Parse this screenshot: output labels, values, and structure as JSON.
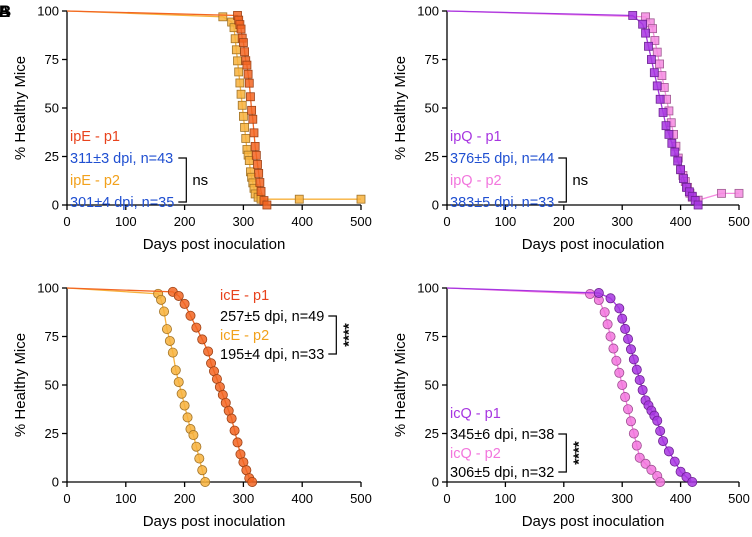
{
  "panel_letters": [
    "A",
    "B"
  ],
  "chart_data": [
    {
      "type": "line",
      "panel": "ipE",
      "xlabel": "Days post inoculation",
      "ylabel": "% Healthy Mice",
      "xlim": [
        0,
        500
      ],
      "ylim": [
        0,
        100
      ],
      "xticks": [
        0,
        100,
        200,
        300,
        400,
        500
      ],
      "yticks": [
        0,
        25,
        50,
        75,
        100
      ],
      "series": [
        {
          "name": "ipE - p1",
          "color": "#F26522",
          "marker": "square",
          "x": [
            0,
            290,
            292,
            294,
            296,
            298,
            300,
            302,
            304,
            306,
            308,
            310,
            312,
            314,
            316,
            318,
            320,
            322,
            324,
            326,
            328,
            330,
            335,
            340
          ],
          "y": [
            100,
            97.7,
            95.3,
            93,
            90.7,
            86,
            83.7,
            79,
            74.4,
            72.1,
            67.4,
            62.8,
            55.8,
            48.8,
            44.2,
            37.2,
            30.2,
            25.6,
            20.9,
            16.3,
            11.6,
            7,
            2.3,
            0
          ]
        },
        {
          "name": "ipE - p2",
          "color": "#F7B13C",
          "marker": "square",
          "x": [
            0,
            265,
            280,
            284,
            286,
            288,
            290,
            292,
            294,
            296,
            298,
            300,
            302,
            304,
            306,
            308,
            310,
            312,
            314,
            316,
            318,
            320,
            325,
            330,
            395,
            500
          ],
          "y": [
            100,
            97,
            94.3,
            91.4,
            85.7,
            80,
            74.3,
            68.6,
            62.9,
            57.1,
            51.4,
            45.7,
            40,
            34.3,
            28.6,
            25.7,
            22.9,
            17.1,
            14.3,
            11.4,
            8.6,
            5.7,
            4,
            3,
            3,
            3
          ]
        }
      ],
      "annotations": [
        {
          "text": "ipE - p1",
          "color": "#E8431D"
        },
        {
          "text": "311±3 dpi, n=43",
          "color": "#1F4FD1"
        },
        {
          "text": "ipE - p2",
          "color": "#F2A11C"
        },
        {
          "text": "301±4 dpi, n=35",
          "color": "#1F4FD1"
        }
      ],
      "significance": "ns"
    },
    {
      "type": "line",
      "panel": "ipQ",
      "xlabel": "Days post inoculation",
      "ylabel": "% Healthy Mice",
      "xlim": [
        0,
        500
      ],
      "ylim": [
        0,
        100
      ],
      "xticks": [
        0,
        100,
        200,
        300,
        400,
        500
      ],
      "yticks": [
        0,
        25,
        50,
        75,
        100
      ],
      "series": [
        {
          "name": "ipQ - p1",
          "color": "#A735E0",
          "marker": "square",
          "x": [
            0,
            318,
            335,
            340,
            345,
            350,
            355,
            360,
            365,
            370,
            375,
            380,
            385,
            390,
            395,
            400,
            405,
            410,
            415,
            420,
            425,
            430
          ],
          "y": [
            100,
            97.7,
            93.2,
            88.6,
            81.8,
            75,
            68.2,
            61.4,
            54.5,
            47.7,
            40.9,
            36.4,
            31.8,
            27.3,
            22.7,
            18.2,
            13.6,
            9.1,
            6.8,
            4.5,
            2.3,
            0
          ]
        },
        {
          "name": "ipQ - p2",
          "color": "#F58AE0",
          "marker": "square",
          "x": [
            0,
            340,
            348,
            352,
            356,
            360,
            364,
            368,
            372,
            376,
            380,
            384,
            388,
            392,
            396,
            400,
            404,
            408,
            412,
            416,
            420,
            430,
            470,
            500
          ],
          "y": [
            100,
            97,
            93.9,
            90.9,
            84.8,
            78.8,
            72.7,
            66.7,
            60.6,
            54.5,
            48.5,
            42.4,
            36.4,
            30.3,
            24.2,
            18.2,
            15.2,
            12.1,
            9.1,
            6.1,
            4,
            2.5,
            6,
            6
          ]
        }
      ],
      "annotations": [
        {
          "text": "ipQ - p1",
          "color": "#A735E0"
        },
        {
          "text": "376±5 dpi, n=44",
          "color": "#1F4FD1"
        },
        {
          "text": "ipQ - p2",
          "color": "#F276DD"
        },
        {
          "text": "383±5 dpi, n=33",
          "color": "#1F4FD1"
        }
      ],
      "significance": "ns"
    },
    {
      "type": "line",
      "panel": "icE",
      "xlabel": "Days post inoculation",
      "ylabel": "% Healthy Mice",
      "xlim": [
        0,
        500
      ],
      "ylim": [
        0,
        100
      ],
      "xticks": [
        0,
        100,
        200,
        300,
        400,
        500
      ],
      "yticks": [
        0,
        25,
        50,
        75,
        100
      ],
      "series": [
        {
          "name": "icE - p1",
          "color": "#F26522",
          "marker": "circle",
          "x": [
            0,
            180,
            190,
            200,
            210,
            220,
            230,
            240,
            245,
            250,
            255,
            260,
            265,
            270,
            275,
            280,
            285,
            290,
            295,
            300,
            305,
            310,
            315
          ],
          "y": [
            100,
            98,
            95.9,
            91.8,
            85.7,
            79.6,
            73.5,
            67.3,
            61.2,
            57.1,
            53.1,
            49,
            44.9,
            40.8,
            36.7,
            32.7,
            26.5,
            20.4,
            14.3,
            10.2,
            6.1,
            2,
            0
          ]
        },
        {
          "name": "icE - p2",
          "color": "#F7B13C",
          "marker": "circle",
          "x": [
            0,
            155,
            160,
            165,
            170,
            175,
            180,
            185,
            190,
            195,
            200,
            205,
            210,
            215,
            220,
            225,
            230,
            235
          ],
          "y": [
            100,
            97,
            93.9,
            87.9,
            78.8,
            72.7,
            66.7,
            57.6,
            51.5,
            45.5,
            39.4,
            33.3,
            27.3,
            24.2,
            18.2,
            12.1,
            6.1,
            0
          ]
        }
      ],
      "annotations": [
        {
          "text": "icE - p1",
          "color": "#E8431D"
        },
        {
          "text": "257±5 dpi, n=49",
          "color": "#000000"
        },
        {
          "text": "icE - p2",
          "color": "#F2A11C"
        },
        {
          "text": "195±4 dpi, n=33",
          "color": "#000000"
        }
      ],
      "significance": "****"
    },
    {
      "type": "line",
      "panel": "icQ",
      "xlabel": "Days post inoculation",
      "ylabel": "% Healthy Mice",
      "xlim": [
        0,
        500
      ],
      "ylim": [
        0,
        100
      ],
      "xticks": [
        0,
        100,
        200,
        300,
        400,
        500
      ],
      "yticks": [
        0,
        25,
        50,
        75,
        100
      ],
      "series": [
        {
          "name": "icQ - p1",
          "color": "#A735E0",
          "marker": "circle",
          "x": [
            0,
            260,
            280,
            295,
            300,
            305,
            310,
            315,
            320,
            325,
            330,
            335,
            340,
            345,
            350,
            355,
            360,
            365,
            370,
            380,
            390,
            400,
            410,
            420
          ],
          "y": [
            100,
            97.4,
            94.7,
            89.5,
            84.2,
            78.9,
            73.7,
            68.4,
            63.2,
            57.9,
            52.6,
            47.4,
            42.1,
            39.5,
            36.8,
            34.2,
            31.6,
            26.3,
            21.1,
            15.8,
            10.5,
            5.3,
            2.6,
            0
          ]
        },
        {
          "name": "icQ - p2",
          "color": "#F276DD",
          "marker": "circle",
          "x": [
            0,
            245,
            260,
            270,
            275,
            280,
            285,
            290,
            295,
            300,
            305,
            310,
            315,
            320,
            325,
            330,
            340,
            350,
            360,
            365
          ],
          "y": [
            100,
            96.9,
            93.8,
            87.5,
            81.3,
            75,
            68.8,
            62.5,
            56.3,
            50,
            43.8,
            37.5,
            31.3,
            25,
            18.8,
            12.5,
            9.4,
            6.3,
            3.1,
            0
          ]
        }
      ],
      "annotations": [
        {
          "text": "icQ - p1",
          "color": "#A735E0"
        },
        {
          "text": "345±6 dpi, n=38",
          "color": "#000000"
        },
        {
          "text": "icQ - p2",
          "color": "#F276DD"
        },
        {
          "text": "306±5 dpi, n=32",
          "color": "#000000"
        }
      ],
      "significance": "****"
    }
  ]
}
